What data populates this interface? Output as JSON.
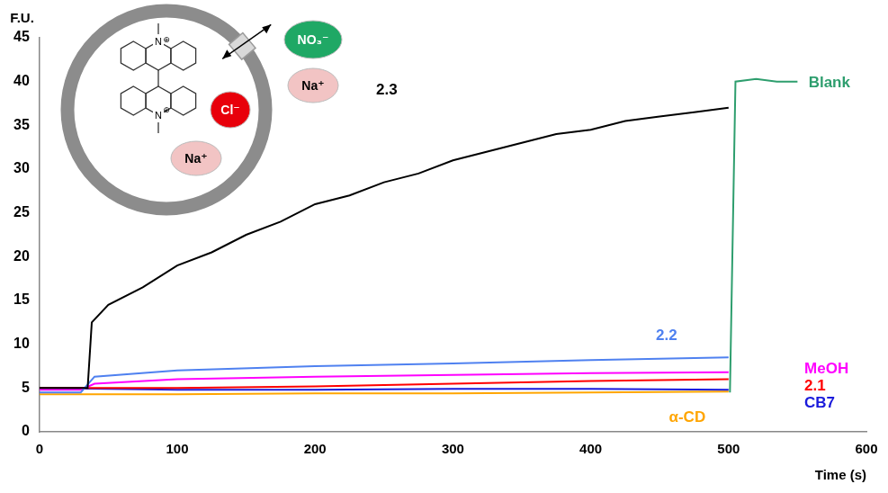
{
  "chart_data": {
    "type": "line",
    "x_label": "Time (s)",
    "y_label": "F.U.",
    "xlim": [
      0,
      600
    ],
    "xticks": [
      0,
      100,
      200,
      300,
      400,
      500,
      600
    ],
    "ylim": [
      0,
      45
    ],
    "yticks": [
      0,
      5,
      10,
      15,
      20,
      25,
      30,
      35,
      40,
      45
    ],
    "grid": false,
    "series": [
      {
        "name": "2.3",
        "color": "#000000",
        "x": [
          0,
          35,
          38,
          50,
          75,
          100,
          125,
          150,
          175,
          200,
          225,
          250,
          275,
          300,
          325,
          350,
          375,
          400,
          425,
          450,
          475,
          500
        ],
        "values": [
          5,
          5,
          12.5,
          14.5,
          16.5,
          19,
          20.5,
          22.5,
          24,
          26,
          27,
          28.5,
          29.5,
          31,
          32,
          33,
          34,
          34.5,
          35.5,
          36,
          36.5,
          37
        ]
      },
      {
        "name": "2.2",
        "color": "#4f81f0",
        "x": [
          0,
          30,
          40,
          100,
          200,
          300,
          400,
          500
        ],
        "values": [
          4.5,
          4.5,
          6.3,
          7,
          7.5,
          7.8,
          8.2,
          8.5
        ]
      },
      {
        "name": "MeOH",
        "color": "#ff00ff",
        "x": [
          0,
          30,
          40,
          100,
          200,
          300,
          400,
          500
        ],
        "values": [
          4.8,
          4.8,
          5.5,
          6,
          6.3,
          6.5,
          6.7,
          6.8
        ]
      },
      {
        "name": "2.1",
        "color": "#ff0000",
        "x": [
          0,
          100,
          200,
          300,
          400,
          500
        ],
        "values": [
          5,
          5,
          5.2,
          5.5,
          5.8,
          6
        ]
      },
      {
        "name": "CB7",
        "color": "#1a1adb",
        "x": [
          0,
          100,
          200,
          300,
          400,
          500
        ],
        "values": [
          5,
          4.8,
          4.8,
          4.9,
          4.9,
          4.8
        ]
      },
      {
        "name": "α-CD",
        "color": "#ffa500",
        "x": [
          0,
          100,
          200,
          300,
          400,
          500
        ],
        "values": [
          4.3,
          4.3,
          4.4,
          4.4,
          4.5,
          4.6
        ]
      },
      {
        "name": "Blank",
        "color": "#2e9e6e",
        "x": [
          501,
          505,
          520,
          535,
          550
        ],
        "values": [
          4.5,
          40,
          40.3,
          40,
          40
        ]
      }
    ],
    "inset": {
      "atom_label": "N",
      "charge_label": "⊕",
      "ions_inside": [
        {
          "label": "Cl⁻",
          "color": "#e8000b"
        },
        {
          "label": "Na⁺",
          "color": "#f2c4c4"
        }
      ],
      "ions_outside": [
        {
          "label": "NO₃⁻",
          "color": "#1fa865"
        },
        {
          "label": "Na⁺",
          "color": "#f2c4c4"
        }
      ]
    }
  }
}
